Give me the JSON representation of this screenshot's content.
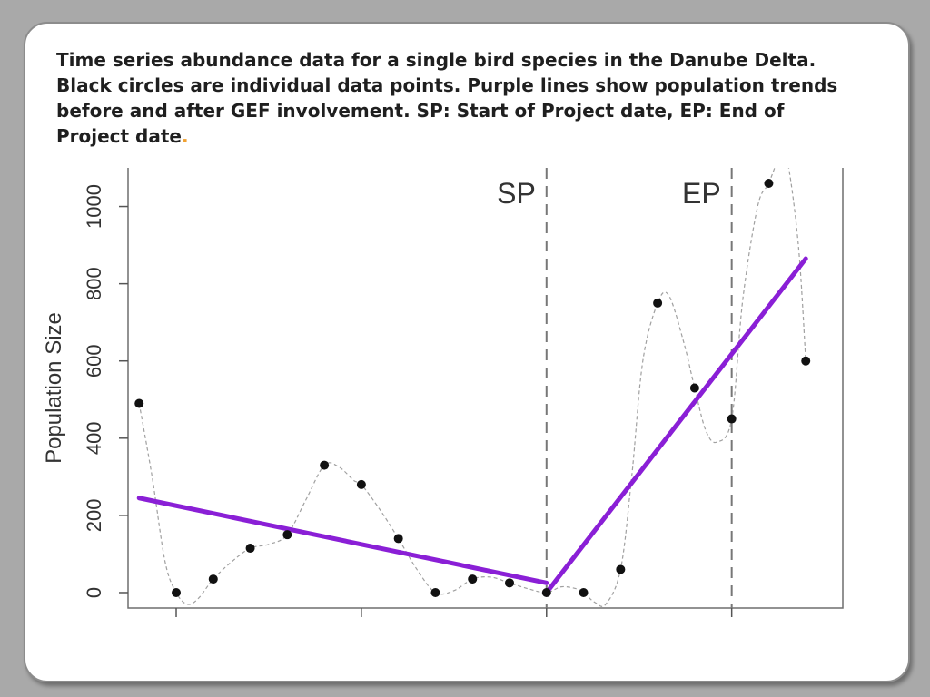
{
  "slide": {
    "caption": "Time series abundance data for a single bird species in the Danube Delta. Black circles are individual data points. Purple lines show population trends before and after GEF involvement. SP: Start of Project date, EP: End of Project date",
    "caption_end": "."
  },
  "chart_data": {
    "type": "scatter",
    "title": "",
    "xlabel": "",
    "ylabel": "Population Size",
    "ylim": [
      -40,
      1100
    ],
    "xlim": [
      -0.3,
      19.0
    ],
    "yticks": [
      0,
      200,
      400,
      600,
      800,
      1000
    ],
    "xticks": [
      1,
      6,
      11,
      16
    ],
    "xtick_labels": [
      "",
      "",
      "",
      ""
    ],
    "grid": false,
    "point_color": "#111111",
    "trend_color": "#8a1fd6",
    "smooth_color": "#a0a0a0",
    "points": {
      "x": [
        0,
        1,
        2,
        3,
        4,
        5,
        6,
        7,
        8,
        9,
        10,
        11,
        12,
        13,
        14,
        15,
        16,
        17,
        18
      ],
      "y": [
        490,
        0,
        35,
        115,
        150,
        330,
        280,
        140,
        0,
        35,
        25,
        0,
        0,
        60,
        750,
        530,
        450,
        1060,
        600
      ]
    },
    "smooth_path": {
      "x": [
        0,
        0.35,
        0.7,
        1.0,
        1.3,
        1.6,
        2.0,
        2.5,
        3.0,
        3.5,
        4.0,
        4.5,
        5.0,
        5.4,
        5.8,
        6.0,
        6.5,
        7.0,
        7.5,
        8.0,
        8.5,
        9.0,
        9.5,
        10.0,
        10.5,
        11.0,
        11.4,
        11.8,
        12.0,
        12.3,
        12.6,
        13.0,
        13.3,
        13.6,
        14.0,
        14.3,
        14.7,
        15.0,
        15.3,
        15.6,
        16.0,
        16.3,
        16.7,
        17.0,
        17.3,
        17.5,
        17.8,
        18.0
      ],
      "y": [
        490,
        300,
        80,
        0,
        -30,
        -15,
        35,
        80,
        115,
        125,
        150,
        240,
        330,
        325,
        290,
        280,
        215,
        140,
        60,
        0,
        5,
        35,
        40,
        25,
        10,
        0,
        15,
        10,
        0,
        -25,
        -30,
        60,
        300,
        600,
        750,
        770,
        650,
        530,
        420,
        390,
        450,
        760,
        1000,
        1060,
        1130,
        1120,
        900,
        600
      ]
    },
    "trend_lines": [
      {
        "x": [
          0,
          11
        ],
        "y": [
          245,
          25
        ]
      },
      {
        "x": [
          11,
          18
        ],
        "y": [
          0,
          865
        ]
      }
    ],
    "vlines": [
      {
        "x": 11,
        "label": "SP"
      },
      {
        "x": 16,
        "label": "EP"
      }
    ]
  }
}
